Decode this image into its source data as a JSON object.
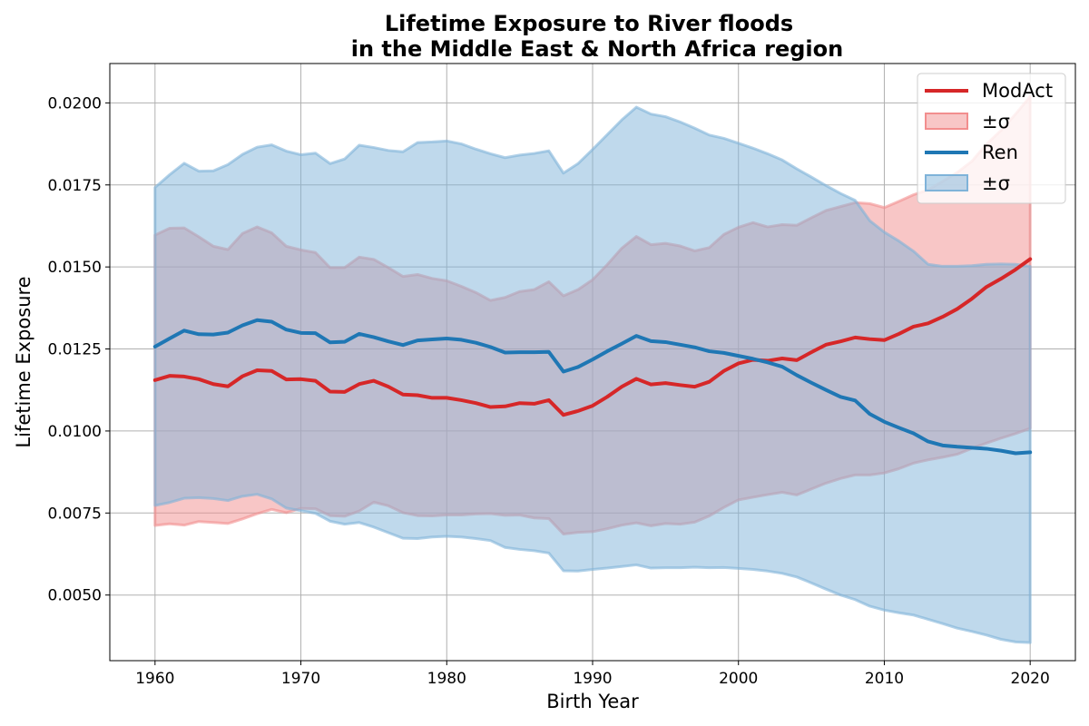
{
  "chart_data": {
    "type": "line",
    "title_line1": "Lifetime Exposure to River floods",
    "title_line2": "in the Middle East & North Africa region",
    "xlabel": "Birth Year",
    "ylabel": "Lifetime Exposure",
    "xlim": [
      1956.9,
      2023.1
    ],
    "ylim": [
      0.003,
      0.0212
    ],
    "xticks": [
      1960,
      1970,
      1980,
      1990,
      2000,
      2010,
      2020
    ],
    "xtick_labels": [
      "1960",
      "1970",
      "1980",
      "1990",
      "2000",
      "2010",
      "2020"
    ],
    "yticks": [
      0.005,
      0.0075,
      0.01,
      0.0125,
      0.015,
      0.0175,
      0.02
    ],
    "ytick_labels": [
      "0.0050",
      "0.0075",
      "0.0100",
      "0.0125",
      "0.0150",
      "0.0175",
      "0.0200"
    ],
    "grid": true,
    "legend_position": "top-right",
    "legend_entries": [
      {
        "label": "ModAct",
        "kind": "line",
        "series": 0
      },
      {
        "label": "±σ",
        "kind": "band",
        "series": 0
      },
      {
        "label": "Ren",
        "kind": "line",
        "series": 1
      },
      {
        "label": "±σ",
        "kind": "band",
        "series": 1
      }
    ],
    "x": [
      1960,
      1961,
      1962,
      1963,
      1964,
      1965,
      1966,
      1967,
      1968,
      1969,
      1970,
      1971,
      1972,
      1973,
      1974,
      1975,
      1976,
      1977,
      1978,
      1979,
      1980,
      1981,
      1982,
      1983,
      1984,
      1985,
      1986,
      1987,
      1988,
      1989,
      1990,
      1991,
      1992,
      1993,
      1994,
      1995,
      1996,
      1997,
      1998,
      1999,
      2000,
      2001,
      2002,
      2003,
      2004,
      2005,
      2006,
      2007,
      2008,
      2009,
      2010,
      2011,
      2012,
      2013,
      2014,
      2015,
      2016,
      2017,
      2018,
      2019,
      2020
    ],
    "series": [
      {
        "name": "ModAct",
        "color": "#d62728",
        "band_color": "#f28e8e",
        "mean": [
          0.01155,
          0.01168,
          0.01166,
          0.01158,
          0.01143,
          0.01136,
          0.01167,
          0.01185,
          0.01183,
          0.01157,
          0.01158,
          0.01153,
          0.0112,
          0.01119,
          0.01143,
          0.01153,
          0.01135,
          0.01111,
          0.01109,
          0.01101,
          0.01101,
          0.01094,
          0.01085,
          0.01073,
          0.01075,
          0.01085,
          0.01083,
          0.01094,
          0.01049,
          0.01061,
          0.01077,
          0.01104,
          0.01135,
          0.01159,
          0.01142,
          0.01146,
          0.0114,
          0.01135,
          0.0115,
          0.01183,
          0.01206,
          0.01217,
          0.01214,
          0.01221,
          0.01216,
          0.0124,
          0.01263,
          0.01273,
          0.01285,
          0.0128,
          0.01277,
          0.01296,
          0.01318,
          0.01328,
          0.01348,
          0.01372,
          0.01403,
          0.01439,
          0.01464,
          0.01492,
          0.01524
        ],
        "upper": [
          0.01597,
          0.01618,
          0.01619,
          0.01592,
          0.01563,
          0.01553,
          0.01602,
          0.01622,
          0.01604,
          0.01563,
          0.01552,
          0.01544,
          0.01498,
          0.01498,
          0.0153,
          0.01523,
          0.01498,
          0.01471,
          0.01477,
          0.01465,
          0.01458,
          0.01441,
          0.01422,
          0.01398,
          0.01407,
          0.01425,
          0.01431,
          0.01455,
          0.01412,
          0.01431,
          0.01461,
          0.01507,
          0.01557,
          0.01593,
          0.01568,
          0.01572,
          0.01564,
          0.01549,
          0.01559,
          0.01599,
          0.01621,
          0.01635,
          0.01622,
          0.01629,
          0.01627,
          0.0165,
          0.01672,
          0.01684,
          0.01696,
          0.01693,
          0.01681,
          0.017,
          0.0172,
          0.01735,
          0.01761,
          0.01788,
          0.01822,
          0.01874,
          0.01916,
          0.01966,
          0.0202
        ],
        "lower": [
          0.00712,
          0.00717,
          0.00713,
          0.00724,
          0.00721,
          0.00718,
          0.00732,
          0.00748,
          0.00761,
          0.00751,
          0.00764,
          0.00763,
          0.00742,
          0.0074,
          0.00756,
          0.00783,
          0.00772,
          0.00751,
          0.00742,
          0.00741,
          0.00744,
          0.00744,
          0.00747,
          0.00748,
          0.00743,
          0.00744,
          0.00735,
          0.00733,
          0.00686,
          0.00691,
          0.00693,
          0.00702,
          0.00713,
          0.0072,
          0.00711,
          0.00718,
          0.00716,
          0.00722,
          0.00741,
          0.00767,
          0.0079,
          0.00798,
          0.00806,
          0.00813,
          0.00805,
          0.00823,
          0.00841,
          0.00855,
          0.00866,
          0.00866,
          0.00872,
          0.00885,
          0.00902,
          0.00912,
          0.0092,
          0.00929,
          0.00947,
          0.00963,
          0.00978,
          0.00992,
          0.01008
        ]
      },
      {
        "name": "Ren",
        "color": "#1f77b4",
        "band_color": "#7fb3d9",
        "mean": [
          0.01257,
          0.01282,
          0.01306,
          0.01295,
          0.01294,
          0.013,
          0.01322,
          0.01338,
          0.01333,
          0.01309,
          0.01299,
          0.01298,
          0.0127,
          0.01272,
          0.01296,
          0.01286,
          0.01273,
          0.01262,
          0.01276,
          0.01279,
          0.01282,
          0.01278,
          0.01269,
          0.01256,
          0.01239,
          0.0124,
          0.0124,
          0.01241,
          0.01181,
          0.01195,
          0.01218,
          0.01243,
          0.01266,
          0.0129,
          0.01274,
          0.01271,
          0.01263,
          0.01255,
          0.01243,
          0.01238,
          0.01229,
          0.0122,
          0.01209,
          0.01196,
          0.0117,
          0.01147,
          0.01125,
          0.01104,
          0.01093,
          0.01052,
          0.01028,
          0.0101,
          0.00993,
          0.00968,
          0.00956,
          0.00952,
          0.00949,
          0.00946,
          0.0094,
          0.00932,
          0.00935
        ],
        "upper": [
          0.01742,
          0.01781,
          0.01816,
          0.01792,
          0.01793,
          0.01812,
          0.01843,
          0.01865,
          0.01872,
          0.01853,
          0.01842,
          0.01847,
          0.01815,
          0.01829,
          0.01871,
          0.01864,
          0.01855,
          0.01851,
          0.01879,
          0.01881,
          0.01884,
          0.01875,
          0.01859,
          0.01845,
          0.01833,
          0.01841,
          0.01846,
          0.01854,
          0.01786,
          0.01815,
          0.01858,
          0.01903,
          0.01948,
          0.01987,
          0.01966,
          0.01958,
          0.01942,
          0.01923,
          0.01902,
          0.01892,
          0.01877,
          0.01862,
          0.01845,
          0.01826,
          0.01799,
          0.01774,
          0.01748,
          0.01724,
          0.01703,
          0.01641,
          0.01606,
          0.01579,
          0.01548,
          0.01508,
          0.01502,
          0.01502,
          0.01504,
          0.01508,
          0.01509,
          0.01508,
          0.01502
        ],
        "lower": [
          0.00773,
          0.00782,
          0.00795,
          0.00797,
          0.00794,
          0.00788,
          0.00801,
          0.00807,
          0.00793,
          0.00765,
          0.00757,
          0.00749,
          0.00725,
          0.00716,
          0.00721,
          0.00707,
          0.0069,
          0.00673,
          0.00672,
          0.00677,
          0.00679,
          0.00677,
          0.00672,
          0.00666,
          0.00645,
          0.00639,
          0.00635,
          0.00628,
          0.00574,
          0.00573,
          0.00578,
          0.00582,
          0.00587,
          0.00592,
          0.00582,
          0.00583,
          0.00583,
          0.00585,
          0.00583,
          0.00584,
          0.00581,
          0.00578,
          0.00573,
          0.00566,
          0.00555,
          0.00537,
          0.00518,
          0.005,
          0.00486,
          0.00466,
          0.00454,
          0.00446,
          0.00439,
          0.00426,
          0.00413,
          0.00399,
          0.00389,
          0.00378,
          0.00365,
          0.00357,
          0.00355
        ]
      }
    ]
  }
}
